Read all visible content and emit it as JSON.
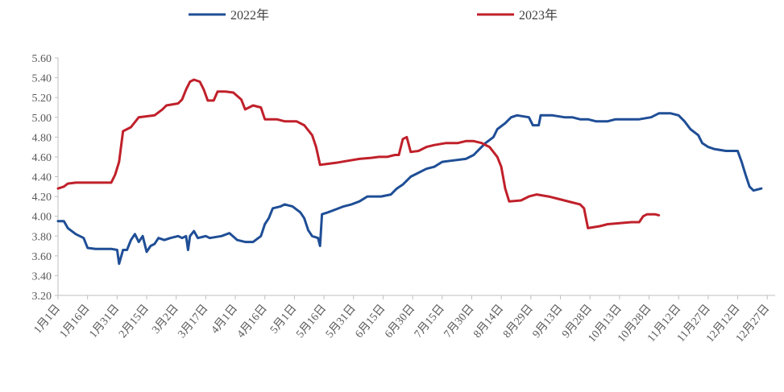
{
  "chart_data": {
    "type": "line",
    "x_unit": "day-of-year",
    "categories": [
      "1月1日",
      "1月16日",
      "1月31日",
      "2月15日",
      "3月2日",
      "3月17日",
      "4月1日",
      "4月16日",
      "5月1日",
      "5月16日",
      "5月31日",
      "6月15日",
      "6月30日",
      "7月15日",
      "7月30日",
      "8月14日",
      "8月29日",
      "9月13日",
      "9月28日",
      "10月13日",
      "10月28日",
      "11月12日",
      "11月27日",
      "12月12日",
      "12月27日"
    ],
    "category_days": [
      1,
      16,
      31,
      46,
      61,
      76,
      91,
      106,
      121,
      136,
      151,
      166,
      181,
      196,
      211,
      226,
      241,
      256,
      271,
      286,
      301,
      316,
      331,
      346,
      361
    ],
    "ylim": [
      3.2,
      5.6
    ],
    "yticks": [
      "3.20",
      "3.40",
      "3.60",
      "3.80",
      "4.00",
      "4.20",
      "4.40",
      "4.60",
      "4.80",
      "5.00",
      "5.20",
      "5.40",
      "5.60"
    ],
    "xlim": [
      1,
      365
    ],
    "legend_position": "top",
    "series": [
      {
        "name": "2022年",
        "color": "#1f4e96",
        "points": [
          [
            1,
            3.95
          ],
          [
            4,
            3.95
          ],
          [
            6,
            3.88
          ],
          [
            10,
            3.82
          ],
          [
            14,
            3.78
          ],
          [
            16,
            3.68
          ],
          [
            20,
            3.67
          ],
          [
            24,
            3.67
          ],
          [
            28,
            3.67
          ],
          [
            31,
            3.66
          ],
          [
            32,
            3.52
          ],
          [
            34,
            3.66
          ],
          [
            36,
            3.66
          ],
          [
            38,
            3.76
          ],
          [
            40,
            3.82
          ],
          [
            42,
            3.74
          ],
          [
            44,
            3.8
          ],
          [
            46,
            3.64
          ],
          [
            48,
            3.7
          ],
          [
            50,
            3.72
          ],
          [
            52,
            3.78
          ],
          [
            55,
            3.76
          ],
          [
            58,
            3.78
          ],
          [
            62,
            3.8
          ],
          [
            64,
            3.78
          ],
          [
            66,
            3.8
          ],
          [
            67,
            3.66
          ],
          [
            68,
            3.8
          ],
          [
            70,
            3.85
          ],
          [
            72,
            3.78
          ],
          [
            76,
            3.8
          ],
          [
            78,
            3.78
          ],
          [
            84,
            3.8
          ],
          [
            88,
            3.83
          ],
          [
            92,
            3.76
          ],
          [
            96,
            3.74
          ],
          [
            100,
            3.74
          ],
          [
            104,
            3.8
          ],
          [
            106,
            3.92
          ],
          [
            108,
            3.98
          ],
          [
            110,
            4.08
          ],
          [
            114,
            4.1
          ],
          [
            116,
            4.12
          ],
          [
            120,
            4.1
          ],
          [
            124,
            4.04
          ],
          [
            126,
            3.98
          ],
          [
            128,
            3.86
          ],
          [
            130,
            3.8
          ],
          [
            133,
            3.78
          ],
          [
            134,
            3.7
          ],
          [
            135,
            4.02
          ],
          [
            138,
            4.04
          ],
          [
            142,
            4.07
          ],
          [
            146,
            4.1
          ],
          [
            150,
            4.12
          ],
          [
            154,
            4.15
          ],
          [
            158,
            4.2
          ],
          [
            165,
            4.2
          ],
          [
            170,
            4.22
          ],
          [
            173,
            4.28
          ],
          [
            176,
            4.32
          ],
          [
            178,
            4.36
          ],
          [
            180,
            4.4
          ],
          [
            184,
            4.44
          ],
          [
            188,
            4.48
          ],
          [
            192,
            4.5
          ],
          [
            196,
            4.55
          ],
          [
            200,
            4.56
          ],
          [
            208,
            4.58
          ],
          [
            212,
            4.62
          ],
          [
            215,
            4.68
          ],
          [
            218,
            4.74
          ],
          [
            222,
            4.8
          ],
          [
            224,
            4.88
          ],
          [
            228,
            4.94
          ],
          [
            231,
            5.0
          ],
          [
            234,
            5.02
          ],
          [
            240,
            5.0
          ],
          [
            242,
            4.92
          ],
          [
            245,
            4.92
          ],
          [
            246,
            5.02
          ],
          [
            252,
            5.02
          ],
          [
            258,
            5.0
          ],
          [
            262,
            5.0
          ],
          [
            266,
            4.98
          ],
          [
            270,
            4.98
          ],
          [
            274,
            4.96
          ],
          [
            280,
            4.96
          ],
          [
            284,
            4.98
          ],
          [
            290,
            4.98
          ],
          [
            296,
            4.98
          ],
          [
            302,
            5.0
          ],
          [
            306,
            5.04
          ],
          [
            312,
            5.04
          ],
          [
            316,
            5.02
          ],
          [
            319,
            4.96
          ],
          [
            322,
            4.88
          ],
          [
            326,
            4.82
          ],
          [
            328,
            4.74
          ],
          [
            331,
            4.7
          ],
          [
            334,
            4.68
          ],
          [
            340,
            4.66
          ],
          [
            346,
            4.66
          ],
          [
            348,
            4.55
          ],
          [
            350,
            4.42
          ],
          [
            352,
            4.3
          ],
          [
            354,
            4.26
          ],
          [
            358,
            4.28
          ]
        ]
      },
      {
        "name": "2023年",
        "color": "#c0202a",
        "points": [
          [
            1,
            4.28
          ],
          [
            4,
            4.3
          ],
          [
            6,
            4.33
          ],
          [
            10,
            4.34
          ],
          [
            20,
            4.34
          ],
          [
            28,
            4.34
          ],
          [
            30,
            4.42
          ],
          [
            32,
            4.55
          ],
          [
            34,
            4.86
          ],
          [
            38,
            4.9
          ],
          [
            42,
            5.0
          ],
          [
            50,
            5.02
          ],
          [
            54,
            5.08
          ],
          [
            56,
            5.12
          ],
          [
            62,
            5.14
          ],
          [
            64,
            5.18
          ],
          [
            66,
            5.28
          ],
          [
            68,
            5.36
          ],
          [
            70,
            5.38
          ],
          [
            73,
            5.36
          ],
          [
            75,
            5.28
          ],
          [
            77,
            5.17
          ],
          [
            80,
            5.17
          ],
          [
            82,
            5.26
          ],
          [
            86,
            5.26
          ],
          [
            90,
            5.25
          ],
          [
            94,
            5.18
          ],
          [
            96,
            5.08
          ],
          [
            100,
            5.12
          ],
          [
            104,
            5.1
          ],
          [
            106,
            4.98
          ],
          [
            112,
            4.98
          ],
          [
            116,
            4.96
          ],
          [
            122,
            4.96
          ],
          [
            126,
            4.92
          ],
          [
            130,
            4.82
          ],
          [
            132,
            4.7
          ],
          [
            134,
            4.52
          ],
          [
            138,
            4.53
          ],
          [
            142,
            4.54
          ],
          [
            148,
            4.56
          ],
          [
            154,
            4.58
          ],
          [
            160,
            4.59
          ],
          [
            164,
            4.6
          ],
          [
            168,
            4.6
          ],
          [
            172,
            4.62
          ],
          [
            174,
            4.62
          ],
          [
            176,
            4.78
          ],
          [
            178,
            4.8
          ],
          [
            180,
            4.65
          ],
          [
            184,
            4.66
          ],
          [
            188,
            4.7
          ],
          [
            192,
            4.72
          ],
          [
            198,
            4.74
          ],
          [
            204,
            4.74
          ],
          [
            208,
            4.76
          ],
          [
            212,
            4.76
          ],
          [
            216,
            4.74
          ],
          [
            220,
            4.7
          ],
          [
            224,
            4.6
          ],
          [
            226,
            4.5
          ],
          [
            228,
            4.28
          ],
          [
            230,
            4.15
          ],
          [
            236,
            4.16
          ],
          [
            240,
            4.2
          ],
          [
            244,
            4.22
          ],
          [
            250,
            4.2
          ],
          [
            254,
            4.18
          ],
          [
            258,
            4.16
          ],
          [
            262,
            4.14
          ],
          [
            266,
            4.12
          ],
          [
            268,
            4.08
          ],
          [
            270,
            3.88
          ],
          [
            276,
            3.9
          ],
          [
            280,
            3.92
          ],
          [
            286,
            3.93
          ],
          [
            292,
            3.94
          ],
          [
            296,
            3.94
          ],
          [
            298,
            4.0
          ],
          [
            300,
            4.02
          ],
          [
            304,
            4.02
          ],
          [
            306,
            4.01
          ]
        ]
      }
    ]
  }
}
